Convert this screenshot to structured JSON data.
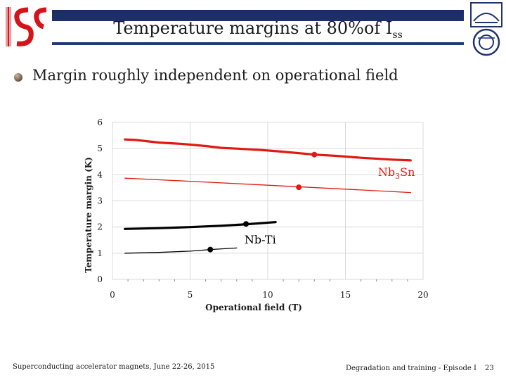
{
  "slide": {
    "title_main": "Temperature margins at 80%of I",
    "title_sub": "ss",
    "bullet": "Margin roughly independent on operational field",
    "footer_left": "Superconducting accelerator magnets, June 22-26, 2015",
    "footer_mid": "Degradation and training - Episode I",
    "page_number": "23",
    "left_logo_text": "ISS"
  },
  "colors": {
    "nb3sn": "#e01a12",
    "nbti": "#000000",
    "title_band": "#1f3370",
    "grid": "#d9d9d9"
  },
  "chart_data": {
    "type": "line",
    "xlabel": "Operational field (T)",
    "ylabel": "Temperature margin (K)",
    "xlim": [
      0,
      20
    ],
    "ylim": [
      0,
      6
    ],
    "x_ticks": [
      0,
      5,
      10,
      15,
      20
    ],
    "y_ticks": [
      0,
      1,
      2,
      3,
      4,
      5,
      6
    ],
    "grid": true,
    "annotations": [
      {
        "text": "Nb",
        "sub": "3",
        "text2": "Sn",
        "x": 17.1,
        "y": 3.95,
        "color": "#e01a12"
      },
      {
        "text": "Nb-Ti",
        "sub": "",
        "text2": "",
        "x": 8.5,
        "y": 1.37,
        "color": "#000000"
      }
    ],
    "series": [
      {
        "color": "#e01a12",
        "width": 3.2,
        "x": [
          0.8,
          1.5,
          3,
          4.5,
          6,
          7,
          8,
          9.5,
          11,
          13,
          14.5,
          16,
          18,
          19.2
        ],
        "y": [
          5.35,
          5.33,
          5.23,
          5.18,
          5.1,
          5.03,
          5.0,
          4.95,
          4.88,
          4.77,
          4.72,
          4.65,
          4.58,
          4.55
        ],
        "marker": {
          "x": 13.0,
          "y": 4.77
        }
      },
      {
        "color": "#e01a12",
        "width": 1.3,
        "x": [
          0.8,
          5,
          10,
          15,
          19.2
        ],
        "y": [
          3.87,
          3.75,
          3.6,
          3.45,
          3.32
        ],
        "marker": {
          "x": 12.0,
          "y": 3.52
        }
      },
      {
        "color": "#000000",
        "width": 3.2,
        "x": [
          0.8,
          3,
          5,
          7,
          8.5,
          10.5
        ],
        "y": [
          1.93,
          1.96,
          2.0,
          2.05,
          2.1,
          2.19
        ],
        "marker": {
          "x": 8.6,
          "y": 2.12
        }
      },
      {
        "color": "#000000",
        "width": 1.3,
        "x": [
          0.8,
          3,
          5,
          6.3,
          8
        ],
        "y": [
          1.0,
          1.03,
          1.08,
          1.14,
          1.2
        ],
        "marker": {
          "x": 6.3,
          "y": 1.14
        }
      }
    ]
  }
}
